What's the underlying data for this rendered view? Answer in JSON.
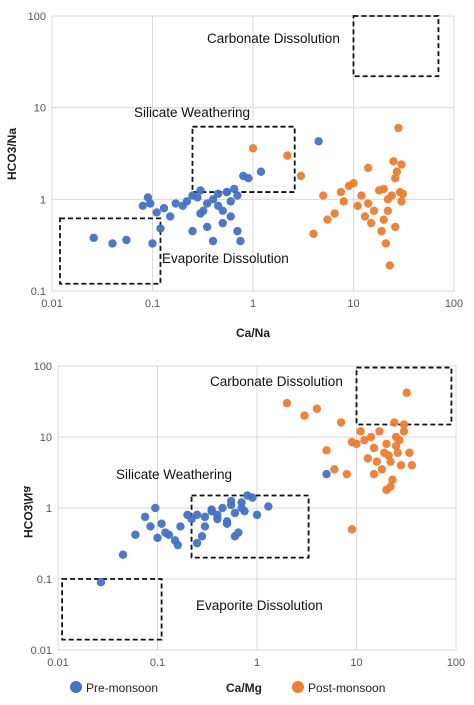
{
  "chart_data": [
    {
      "type": "scatter",
      "xscale": "log",
      "yscale": "log",
      "xlim": [
        0.01,
        100
      ],
      "ylim": [
        0.1,
        100
      ],
      "xlabel": "Ca/Na",
      "ylabel": "HCO3/Na",
      "grid": true,
      "xticks": [
        "0.01",
        "0.1",
        "1",
        "10",
        "100"
      ],
      "yticks": [
        "0.1",
        "1",
        "10",
        "100"
      ],
      "regions": [
        {
          "label": "Carbonate Dissolution",
          "x": [
            10,
            70
          ],
          "y": [
            22,
            100
          ]
        },
        {
          "label": "Silicate Weathering",
          "x": [
            0.25,
            2.6
          ],
          "y": [
            1.2,
            6.2
          ]
        },
        {
          "label": "Evaporite Dissolution",
          "x": [
            0.012,
            0.12
          ],
          "y": [
            0.12,
            0.62
          ]
        }
      ],
      "series": [
        {
          "color": "#4472C4",
          "x": [
            0.026,
            0.04,
            0.055,
            0.08,
            0.09,
            0.095,
            0.1,
            0.11,
            0.13,
            0.15,
            0.17,
            0.2,
            0.22,
            0.25,
            0.28,
            0.3,
            0.32,
            0.35,
            0.4,
            0.45,
            0.5,
            0.55,
            0.6,
            0.65,
            0.7,
            0.8,
            0.9,
            1.2,
            4.5,
            0.35,
            0.4,
            0.6,
            0.7,
            0.25,
            0.3,
            0.55,
            0.75,
            0.45,
            0.5,
            0.12
          ],
          "y": [
            0.38,
            0.33,
            0.36,
            0.85,
            1.05,
            0.9,
            0.33,
            0.72,
            0.8,
            0.65,
            0.9,
            0.85,
            0.95,
            1.1,
            1.05,
            1.25,
            0.75,
            0.9,
            1.0,
            0.85,
            0.55,
            1.2,
            0.95,
            1.3,
            1.1,
            1.8,
            1.7,
            2.0,
            4.3,
            0.5,
            0.35,
            0.65,
            0.45,
            0.45,
            0.7,
            1.2,
            0.35,
            1.15,
            0.75,
            0.48
          ]
        },
        {
          "color": "#ED7D31",
          "x": [
            1.0,
            2.2,
            3.0,
            4.0,
            5.0,
            5.5,
            6.5,
            7.5,
            8.0,
            9.0,
            10.0,
            11.0,
            12.0,
            13.0,
            14.0,
            15.0,
            16.0,
            18.0,
            19.0,
            20.0,
            21.0,
            22.0,
            23.0,
            24.0,
            25.0,
            26.0,
            27.0,
            28.0,
            29.0,
            30.0,
            31.0,
            14.0,
            20.0,
            22.0,
            26.0,
            30.0
          ],
          "y": [
            3.6,
            3.0,
            1.8,
            0.42,
            1.1,
            0.6,
            0.7,
            1.2,
            0.95,
            1.4,
            1.5,
            0.85,
            1.1,
            0.65,
            2.2,
            0.55,
            0.75,
            1.25,
            0.45,
            0.6,
            0.33,
            0.75,
            0.19,
            1.1,
            2.6,
            1.7,
            2.0,
            6.0,
            1.2,
            2.4,
            1.15,
            0.9,
            1.3,
            1.0,
            0.5,
            0.95
          ]
        }
      ]
    },
    {
      "type": "scatter",
      "xscale": "log",
      "yscale": "log",
      "xlim": [
        0.01,
        100
      ],
      "ylim": [
        0.01,
        100
      ],
      "xlabel": "Ca/Mg",
      "ylabel": "HCO3/Na",
      "grid": true,
      "xticks": [
        "0.01",
        "0.1",
        "1",
        "10",
        "100"
      ],
      "yticks": [
        "0.01",
        "0.1",
        "1",
        "10",
        "100"
      ],
      "regions": [
        {
          "label": "Carbonate Dissolution",
          "x": [
            10,
            90
          ],
          "y": [
            15,
            95
          ]
        },
        {
          "label": "Silicate Weathering",
          "x": [
            0.22,
            3.3
          ],
          "y": [
            0.2,
            1.5
          ]
        },
        {
          "label": "Evaporite Dissolution",
          "x": [
            0.011,
            0.11
          ],
          "y": [
            0.014,
            0.1
          ]
        }
      ],
      "legend": {
        "position": "bottom",
        "entries": [
          "Pre-monsoon",
          "Post-monsoon"
        ]
      },
      "series": [
        {
          "name": "Pre-monsoon",
          "color": "#4472C4",
          "x": [
            0.027,
            0.045,
            0.06,
            0.075,
            0.085,
            0.095,
            0.1,
            0.11,
            0.13,
            0.15,
            0.17,
            0.2,
            0.22,
            0.25,
            0.28,
            0.3,
            0.35,
            0.4,
            0.45,
            0.5,
            0.55,
            0.6,
            0.65,
            0.7,
            0.8,
            0.9,
            1.0,
            1.3,
            5.0,
            0.3,
            0.4,
            0.55,
            0.6,
            0.25,
            0.35,
            0.5,
            0.75,
            0.12,
            0.16,
            0.7
          ],
          "y": [
            0.09,
            0.22,
            0.42,
            0.75,
            0.55,
            1.0,
            0.38,
            0.6,
            0.42,
            0.35,
            0.55,
            0.8,
            0.7,
            0.8,
            0.4,
            0.75,
            0.9,
            0.8,
            1.0,
            0.65,
            1.1,
            0.85,
            0.45,
            1.2,
            1.5,
            1.4,
            0.8,
            1.05,
            3.0,
            0.55,
            0.7,
            1.25,
            0.4,
            0.32,
            0.95,
            0.6,
            0.9,
            0.45,
            0.3,
            1.0
          ]
        },
        {
          "name": "Post-monsoon",
          "color": "#ED7D31",
          "x": [
            2.0,
            3.0,
            4.0,
            5.0,
            6.0,
            7.0,
            8.0,
            9.0,
            10.0,
            11.0,
            12.0,
            13.0,
            14.0,
            15.0,
            16.0,
            17.0,
            18.0,
            19.0,
            20.0,
            21.0,
            22.0,
            23.0,
            24.0,
            25.0,
            26.0,
            27.0,
            28.0,
            30.0,
            32.0,
            34.0,
            36.0,
            15.0,
            20.0,
            25.0,
            30.0,
            9.0,
            22.0
          ],
          "y": [
            30.0,
            20.0,
            25.0,
            6.5,
            3.5,
            16.0,
            3.0,
            0.5,
            8.0,
            12.0,
            9.0,
            5.0,
            10.0,
            7.0,
            4.5,
            12.0,
            3.5,
            6.0,
            8.0,
            5.5,
            2.0,
            2.5,
            16.0,
            10.0,
            6.0,
            9.0,
            4.0,
            12.0,
            42.0,
            6.0,
            4.0,
            3.0,
            1.8,
            7.5,
            15.0,
            8.5,
            4.5
          ]
        }
      ]
    }
  ]
}
